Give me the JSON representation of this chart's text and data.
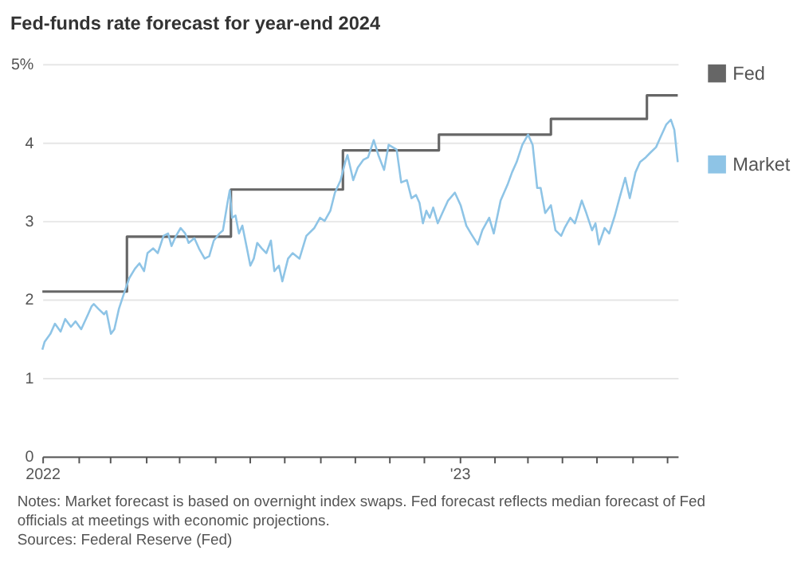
{
  "chart_data": {
    "type": "line",
    "title": "Fed-funds rate forecast for year-end 2024",
    "xlim": [
      "2022-01-01",
      "2023-07-11"
    ],
    "xticks": [
      {
        "value": "2022-01-01",
        "label": "2022"
      },
      {
        "value": "2022-02-01",
        "label": null
      },
      {
        "value": "2022-03-01",
        "label": null
      },
      {
        "value": "2022-04-01",
        "label": null
      },
      {
        "value": "2022-05-01",
        "label": null
      },
      {
        "value": "2022-06-01",
        "label": null
      },
      {
        "value": "2022-07-01",
        "label": null
      },
      {
        "value": "2022-08-01",
        "label": null
      },
      {
        "value": "2022-09-01",
        "label": null
      },
      {
        "value": "2022-10-01",
        "label": null
      },
      {
        "value": "2022-11-01",
        "label": null
      },
      {
        "value": "2022-12-01",
        "label": null
      },
      {
        "value": "2023-01-01",
        "label": "'23"
      },
      {
        "value": "2023-02-01",
        "label": null
      },
      {
        "value": "2023-03-01",
        "label": null
      },
      {
        "value": "2023-04-01",
        "label": null
      },
      {
        "value": "2023-05-01",
        "label": null
      },
      {
        "value": "2023-06-01",
        "label": null
      },
      {
        "value": "2023-07-01",
        "label": null
      }
    ],
    "ylim": [
      0,
      5
    ],
    "yticks": [
      0,
      1,
      2,
      3,
      4,
      {
        "value": 5,
        "label": "5%"
      }
    ],
    "grid": "y",
    "legend": "right",
    "series": [
      {
        "name": "Fed",
        "color": "#666666",
        "type": "step",
        "x": [
          "2022-01-01",
          "2022-03-16",
          "2022-06-15",
          "2022-09-21",
          "2022-12-14",
          "2023-03-22",
          "2023-06-14",
          "2023-07-11"
        ],
        "values": [
          2.1,
          2.8,
          3.4,
          3.9,
          4.1,
          4.3,
          4.6,
          4.6
        ]
      },
      {
        "name": "Market",
        "color": "#8ec4e6",
        "type": "line",
        "x": [
          "2022-01-01",
          "2022-01-03",
          "2022-01-08",
          "2022-01-12",
          "2022-01-17",
          "2022-01-21",
          "2022-01-26",
          "2022-01-30",
          "2022-02-04",
          "2022-02-10",
          "2022-02-13",
          "2022-02-15",
          "2022-02-19",
          "2022-02-24",
          "2022-02-26",
          "2022-03-02",
          "2022-03-05",
          "2022-03-09",
          "2022-03-14",
          "2022-03-18",
          "2022-03-23",
          "2022-03-27",
          "2022-03-31",
          "2022-04-03",
          "2022-04-08",
          "2022-04-12",
          "2022-04-17",
          "2022-04-21",
          "2022-04-24",
          "2022-04-28",
          "2022-05-02",
          "2022-05-06",
          "2022-05-09",
          "2022-05-14",
          "2022-05-18",
          "2022-05-23",
          "2022-05-27",
          "2022-05-31",
          "2022-06-05",
          "2022-06-08",
          "2022-06-12",
          "2022-06-14",
          "2022-06-16",
          "2022-06-19",
          "2022-06-22",
          "2022-06-25",
          "2022-06-29",
          "2022-07-02",
          "2022-07-05",
          "2022-07-08",
          "2022-07-12",
          "2022-07-16",
          "2022-07-20",
          "2022-07-23",
          "2022-07-27",
          "2022-07-30",
          "2022-08-04",
          "2022-08-08",
          "2022-08-14",
          "2022-08-20",
          "2022-08-27",
          "2022-09-01",
          "2022-09-05",
          "2022-09-10",
          "2022-09-14",
          "2022-09-19",
          "2022-09-23",
          "2022-09-25",
          "2022-09-30",
          "2022-10-04",
          "2022-10-09",
          "2022-10-13",
          "2022-10-18",
          "2022-10-22",
          "2022-10-27",
          "2022-10-31",
          "2022-11-07",
          "2022-11-11",
          "2022-11-16",
          "2022-11-20",
          "2022-11-24",
          "2022-11-27",
          "2022-11-30",
          "2022-12-03",
          "2022-12-06",
          "2022-12-09",
          "2022-12-13",
          "2022-12-17",
          "2022-12-22",
          "2022-12-28",
          "2023-01-02",
          "2023-01-07",
          "2023-01-11",
          "2023-01-17",
          "2023-01-21",
          "2023-01-27",
          "2023-01-31",
          "2023-02-06",
          "2023-02-12",
          "2023-02-16",
          "2023-02-20",
          "2023-02-25",
          "2023-03-02",
          "2023-03-06",
          "2023-03-10",
          "2023-03-13",
          "2023-03-17",
          "2023-03-22",
          "2023-03-26",
          "2023-03-31",
          "2023-04-03",
          "2023-04-08",
          "2023-04-12",
          "2023-04-18",
          "2023-04-22",
          "2023-04-27",
          "2023-04-30",
          "2023-05-03",
          "2023-05-08",
          "2023-05-12",
          "2023-05-17",
          "2023-05-21",
          "2023-05-26",
          "2023-05-30",
          "2023-06-04",
          "2023-06-08",
          "2023-06-13",
          "2023-06-17",
          "2023-06-22",
          "2023-06-26",
          "2023-07-01",
          "2023-07-05",
          "2023-07-08",
          "2023-07-11"
        ],
        "values": [
          1.36,
          1.46,
          1.56,
          1.69,
          1.59,
          1.75,
          1.65,
          1.72,
          1.62,
          1.81,
          1.91,
          1.94,
          1.88,
          1.81,
          1.85,
          1.56,
          1.62,
          1.88,
          2.1,
          2.27,
          2.39,
          2.46,
          2.36,
          2.59,
          2.65,
          2.59,
          2.81,
          2.84,
          2.68,
          2.81,
          2.91,
          2.84,
          2.72,
          2.78,
          2.65,
          2.52,
          2.55,
          2.75,
          2.84,
          2.88,
          3.23,
          3.39,
          3.04,
          3.07,
          2.84,
          2.94,
          2.65,
          2.43,
          2.52,
          2.72,
          2.65,
          2.59,
          2.75,
          2.36,
          2.43,
          2.23,
          2.52,
          2.59,
          2.52,
          2.81,
          2.91,
          3.04,
          3.0,
          3.13,
          3.36,
          3.52,
          3.75,
          3.84,
          3.52,
          3.68,
          3.78,
          3.81,
          4.03,
          3.84,
          3.65,
          3.97,
          3.91,
          3.49,
          3.52,
          3.29,
          3.33,
          3.23,
          2.97,
          3.13,
          3.04,
          3.17,
          2.97,
          3.1,
          3.26,
          3.36,
          3.2,
          2.94,
          2.84,
          2.7,
          2.88,
          3.04,
          2.84,
          3.26,
          3.46,
          3.62,
          3.75,
          3.97,
          4.1,
          3.97,
          3.42,
          3.42,
          3.1,
          3.2,
          2.88,
          2.81,
          2.91,
          3.04,
          2.97,
          3.26,
          3.1,
          2.88,
          2.97,
          2.7,
          2.91,
          2.84,
          3.07,
          3.29,
          3.55,
          3.29,
          3.62,
          3.75,
          3.81,
          3.87,
          3.94,
          4.07,
          4.23,
          4.29,
          4.16,
          3.75
        ]
      }
    ],
    "annotations": [
      "Notes: Market forecast is based on overnight index swaps. Fed forecast reflects median forecast of Fed officials at meetings with economic projections.",
      "Sources: Federal Reserve (Fed)"
    ]
  }
}
